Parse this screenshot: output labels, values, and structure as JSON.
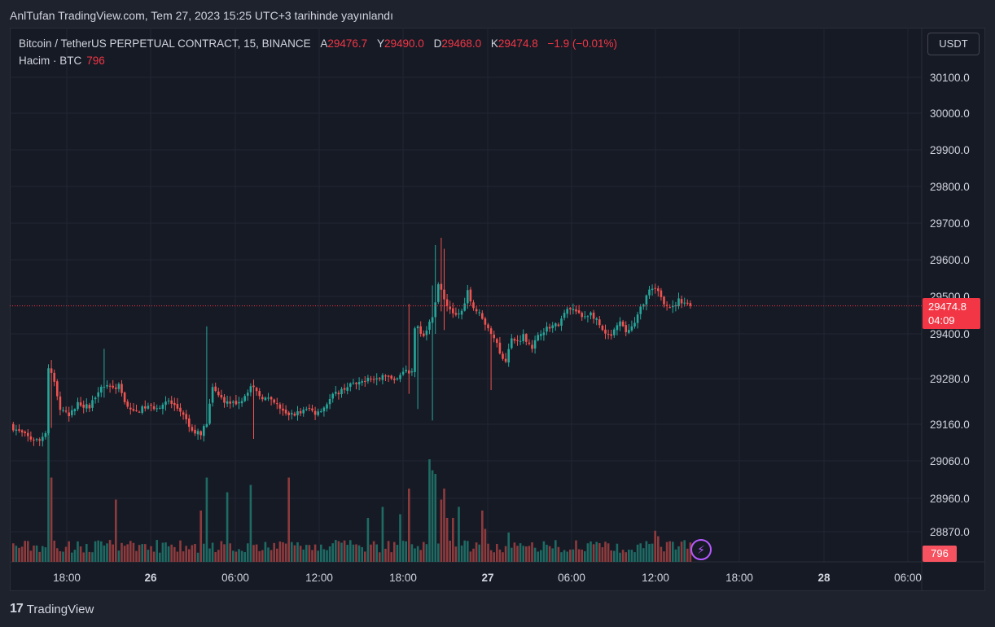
{
  "header": {
    "published": "AnlTufan TradingView.com, Tem 27, 2023 15:25 UTC+3 tarihinde yayınlandı"
  },
  "legend": {
    "symbol": "Bitcoin / TetherUS PERPETUAL CONTRACT, 15, BINANCE",
    "open_label": "A",
    "open": "29476.7",
    "high_label": "Y",
    "high": "29490.0",
    "low_label": "D",
    "low": "29468.0",
    "close_label": "K",
    "close": "29474.8",
    "change": "−1.9 (−0.01%)",
    "volume_label": "Hacim · BTC",
    "volume": "796"
  },
  "currency_button": "USDT",
  "price_tag": {
    "price": "29474.8",
    "countdown": "04:09"
  },
  "volume_tag": "796",
  "footer": {
    "brand": "TradingView",
    "logo": "17"
  },
  "colors": {
    "up": "#26a69a",
    "down": "#ef5350",
    "up_vol": "#1e6b64",
    "down_vol": "#8e3b3d",
    "grid": "#232632",
    "axis_text": "#d1d4dc"
  },
  "icons": {
    "alert": "lightning-bolt-icon"
  },
  "chart_data": {
    "type": "candlestick",
    "title": "Bitcoin / TetherUS PERPETUAL CONTRACT, 15, BINANCE",
    "y_ticks": [
      "30100.0",
      "30000.0",
      "29900.0",
      "29800.0",
      "29700.0",
      "29600.0",
      "29500.0",
      "29400.0",
      "29280.0",
      "29160.0",
      "29060.0",
      "28960.0",
      "28870.0"
    ],
    "y_tick_values": [
      30100,
      30000,
      29900,
      29800,
      29700,
      29600,
      29500,
      29400,
      29280,
      29160,
      29060,
      28960,
      28870
    ],
    "x_ticks": [
      "18:00",
      "26",
      "06:00",
      "12:00",
      "18:00",
      "27",
      "06:00",
      "12:00",
      "18:00",
      "28",
      "06:00"
    ],
    "x_tick_bold": [
      false,
      true,
      false,
      false,
      false,
      true,
      false,
      false,
      false,
      true,
      false
    ],
    "last_price": 29474.8,
    "anchor_prices": [
      [
        0,
        29150
      ],
      [
        6,
        29120
      ],
      [
        9,
        29115
      ],
      [
        11,
        29140
      ],
      [
        12,
        29310
      ],
      [
        14,
        29270
      ],
      [
        16,
        29200
      ],
      [
        19,
        29180
      ],
      [
        22,
        29215
      ],
      [
        26,
        29205
      ],
      [
        29,
        29250
      ],
      [
        32,
        29265
      ],
      [
        34,
        29255
      ],
      [
        36,
        29260
      ],
      [
        38,
        29220
      ],
      [
        41,
        29190
      ],
      [
        45,
        29205
      ],
      [
        49,
        29205
      ],
      [
        53,
        29220
      ],
      [
        57,
        29195
      ],
      [
        61,
        29140
      ],
      [
        64,
        29135
      ],
      [
        66,
        29165
      ],
      [
        68,
        29255
      ],
      [
        70,
        29235
      ],
      [
        74,
        29210
      ],
      [
        78,
        29225
      ],
      [
        81,
        29260
      ],
      [
        84,
        29235
      ],
      [
        87,
        29225
      ],
      [
        90,
        29210
      ],
      [
        93,
        29185
      ],
      [
        97,
        29190
      ],
      [
        101,
        29200
      ],
      [
        103,
        29190
      ],
      [
        106,
        29205
      ],
      [
        109,
        29235
      ],
      [
        112,
        29250
      ],
      [
        115,
        29265
      ],
      [
        118,
        29265
      ],
      [
        121,
        29285
      ],
      [
        124,
        29275
      ],
      [
        127,
        29290
      ],
      [
        130,
        29270
      ],
      [
        133,
        29295
      ],
      [
        136,
        29300
      ],
      [
        137,
        29420
      ],
      [
        140,
        29400
      ],
      [
        143,
        29445
      ],
      [
        145,
        29535
      ],
      [
        148,
        29475
      ],
      [
        151,
        29450
      ],
      [
        153,
        29460
      ],
      [
        155,
        29515
      ],
      [
        157,
        29470
      ],
      [
        160,
        29445
      ],
      [
        162,
        29410
      ],
      [
        164,
        29395
      ],
      [
        166,
        29345
      ],
      [
        168,
        29330
      ],
      [
        170,
        29385
      ],
      [
        172,
        29380
      ],
      [
        174,
        29395
      ],
      [
        177,
        29365
      ],
      [
        180,
        29405
      ],
      [
        183,
        29420
      ],
      [
        186,
        29425
      ],
      [
        189,
        29465
      ],
      [
        191,
        29465
      ],
      [
        194,
        29445
      ],
      [
        197,
        29455
      ],
      [
        199,
        29435
      ],
      [
        202,
        29395
      ],
      [
        204,
        29395
      ],
      [
        207,
        29430
      ],
      [
        209,
        29405
      ],
      [
        212,
        29425
      ],
      [
        214,
        29470
      ],
      [
        217,
        29515
      ],
      [
        220,
        29520
      ],
      [
        222,
        29485
      ],
      [
        225,
        29470
      ],
      [
        227,
        29490
      ],
      [
        229,
        29485
      ],
      [
        231,
        29475
      ]
    ],
    "spikes": [
      {
        "i": 13,
        "high": 29330,
        "low": 29150
      },
      {
        "i": 31,
        "high": 29360,
        "low": 29230
      },
      {
        "i": 66,
        "high": 29420,
        "low": 29150
      },
      {
        "i": 82,
        "high": 29265,
        "low": 29120
      },
      {
        "i": 135,
        "high": 29480,
        "low": 29240
      },
      {
        "i": 138,
        "high": 29330,
        "low": 29200
      },
      {
        "i": 143,
        "high": 29530,
        "low": 29170
      },
      {
        "i": 144,
        "high": 29640,
        "low": 29400
      },
      {
        "i": 146,
        "high": 29660,
        "low": 29460
      },
      {
        "i": 147,
        "high": 29630,
        "low": 29410
      },
      {
        "i": 163,
        "high": 29400,
        "low": 29250
      }
    ],
    "volume_spikes": [
      {
        "i": 12,
        "v": 3.6
      },
      {
        "i": 13,
        "v": 2.3
      },
      {
        "i": 35,
        "v": 1.7
      },
      {
        "i": 64,
        "v": 1.4
      },
      {
        "i": 66,
        "v": 2.3
      },
      {
        "i": 73,
        "v": 1.9
      },
      {
        "i": 81,
        "v": 2.1
      },
      {
        "i": 94,
        "v": 2.3
      },
      {
        "i": 121,
        "v": 1.2
      },
      {
        "i": 126,
        "v": 1.5
      },
      {
        "i": 132,
        "v": 1.3
      },
      {
        "i": 135,
        "v": 2.0
      },
      {
        "i": 142,
        "v": 2.8
      },
      {
        "i": 143,
        "v": 2.5
      },
      {
        "i": 144,
        "v": 2.4
      },
      {
        "i": 146,
        "v": 1.7
      },
      {
        "i": 147,
        "v": 2.0
      },
      {
        "i": 148,
        "v": 1.2
      },
      {
        "i": 150,
        "v": 1.2
      },
      {
        "i": 152,
        "v": 1.5
      },
      {
        "i": 160,
        "v": 1.4
      },
      {
        "i": 161,
        "v": 0.9
      },
      {
        "i": 169,
        "v": 0.8
      },
      {
        "i": 219,
        "v": 0.85
      },
      {
        "i": 220,
        "v": 0.7
      }
    ]
  }
}
